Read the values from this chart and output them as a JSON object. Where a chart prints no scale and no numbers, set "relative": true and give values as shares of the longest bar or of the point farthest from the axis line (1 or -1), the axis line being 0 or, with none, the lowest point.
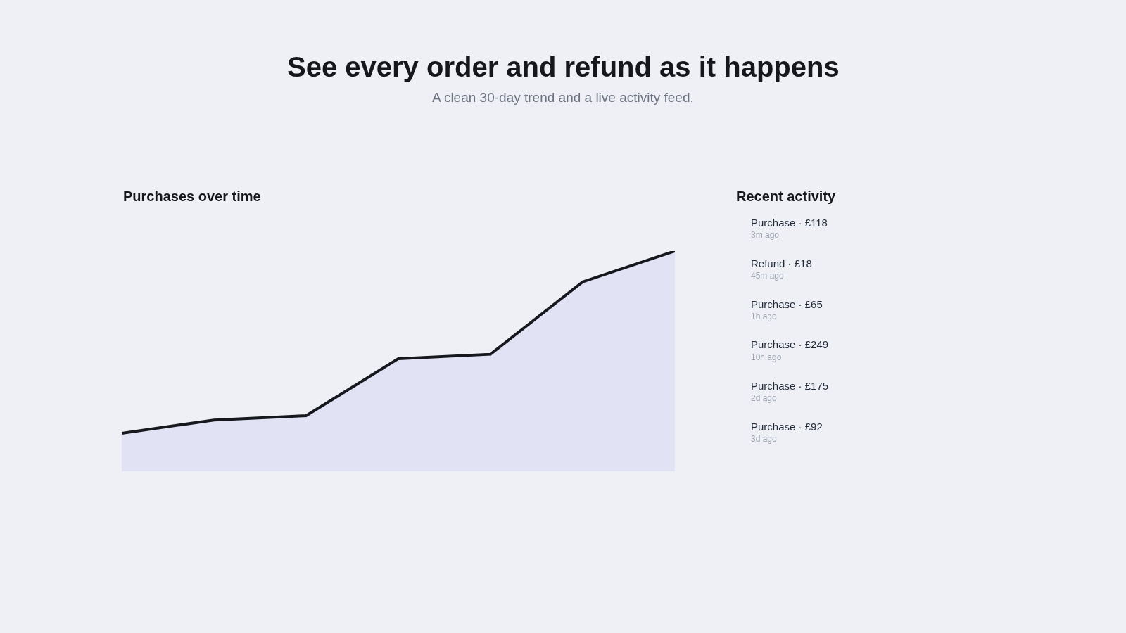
{
  "chart_data": [
    {
      "type": "other",
      "title": "See every order and refund as it happens",
      "subtitle": "A clean 30-day trend and a live activity feed."
    },
    {
      "type": "area",
      "title": "Purchases over time",
      "relative": true,
      "categories": [
        null,
        null,
        null,
        null,
        null,
        null,
        null
      ],
      "values": [
        0.17,
        0.23,
        0.25,
        0.51,
        0.53,
        0.86,
        1
      ],
      "color": "#16181d"
    },
    {
      "type": "other",
      "title": "Recent activity",
      "annotations": [
        "Purchase · £118",
        "3m ago",
        "Refund · £18",
        "45m ago",
        "Purchase · £65",
        "1h ago",
        "Purchase · £249",
        "10h ago",
        "Purchase · £175",
        "2d ago",
        "Purchase · £92",
        "3d ago"
      ]
    }
  ]
}
